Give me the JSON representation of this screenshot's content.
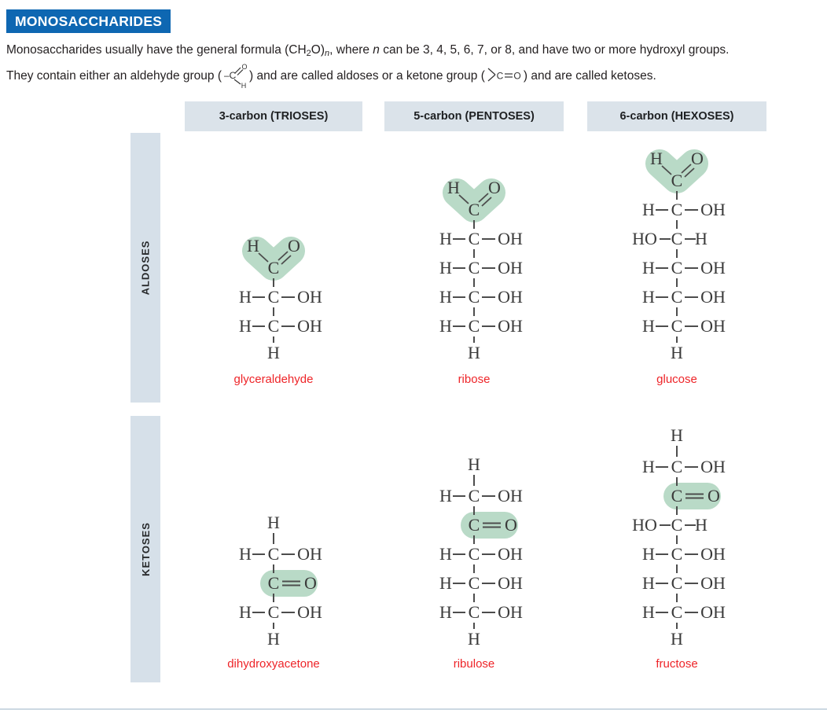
{
  "title": "MONOSACCHARIDES",
  "intro": {
    "line1": [
      {
        "t": "Monosaccharides usually have the general formula (CH"
      },
      {
        "t": "2",
        "s": "sub"
      },
      {
        "t": "O)"
      },
      {
        "t": "n",
        "s": "subitalic"
      },
      {
        "t": ", where "
      },
      {
        "t": "n",
        "s": "italic"
      },
      {
        "t": " can be 3, 4, 5, 6, 7, or 8, and have two or more hydroxyl groups."
      }
    ],
    "line2_pre": "They contain either an aldehyde group (",
    "line2_between": ") and are called aldoses or a ketone group (",
    "line2_post": ") and are called ketoses.",
    "aldehyde_glyph": {
      "minus_c": "–C",
      "o": "O",
      "h": "H"
    },
    "ketone_glyph": {
      "c": "C",
      "o": "O"
    }
  },
  "column_headers": [
    "3-carbon (TRIOSES)",
    "5-carbon (PENTOSES)",
    "6-carbon (HEXOSES)"
  ],
  "row_labels": [
    "ALDOSES",
    "KETOSES"
  ],
  "atoms": {
    "aldehyde": {
      "left": "H",
      "center": "C",
      "right": "O"
    },
    "HCOH": {
      "left": "H",
      "center": "C",
      "right": "OH"
    },
    "HOCH": {
      "left": "HO",
      "center": "C",
      "right": "H"
    },
    "CO": {
      "center": "C",
      "right": "O"
    },
    "H": {
      "center": "H"
    }
  },
  "molecules": [
    {
      "name": "glyceraldehyde",
      "row": 0,
      "col": 0,
      "units": [
        "aldehyde",
        "HCOH",
        "HCOH",
        "H_end"
      ]
    },
    {
      "name": "ribose",
      "row": 0,
      "col": 1,
      "units": [
        "aldehyde",
        "HCOH",
        "HCOH",
        "HCOH",
        "HCOH",
        "H_end"
      ]
    },
    {
      "name": "glucose",
      "row": 0,
      "col": 2,
      "units": [
        "aldehyde",
        "HCOH",
        "HOCH",
        "HCOH",
        "HCOH",
        "HCOH",
        "H_end"
      ]
    },
    {
      "name": "dihydroxyacetone",
      "row": 1,
      "col": 0,
      "units": [
        "H_start",
        "HCOH",
        "CO",
        "HCOH",
        "H_end"
      ]
    },
    {
      "name": "ribulose",
      "row": 1,
      "col": 1,
      "units": [
        "H_start",
        "HCOH",
        "CO",
        "HCOH",
        "HCOH",
        "HCOH",
        "H_end"
      ]
    },
    {
      "name": "fructose",
      "row": 1,
      "col": 2,
      "units": [
        "H_start",
        "HCOH",
        "CO",
        "HOCH",
        "HCOH",
        "HCOH",
        "HCOH",
        "H_end"
      ]
    }
  ],
  "colors": {
    "title_bg": "#0e67b2",
    "title_text": "#ffffff",
    "header_bg": "#dbe3ea",
    "row_label_bg": "#d6e0e9",
    "highlight_green": "#b9dac7",
    "label_red": "#ee2428",
    "atom_text": "#3a3a3a",
    "bond": "#4d4d4d",
    "body_text": "#231f20",
    "bottom_rule": "#ccd9e2"
  }
}
